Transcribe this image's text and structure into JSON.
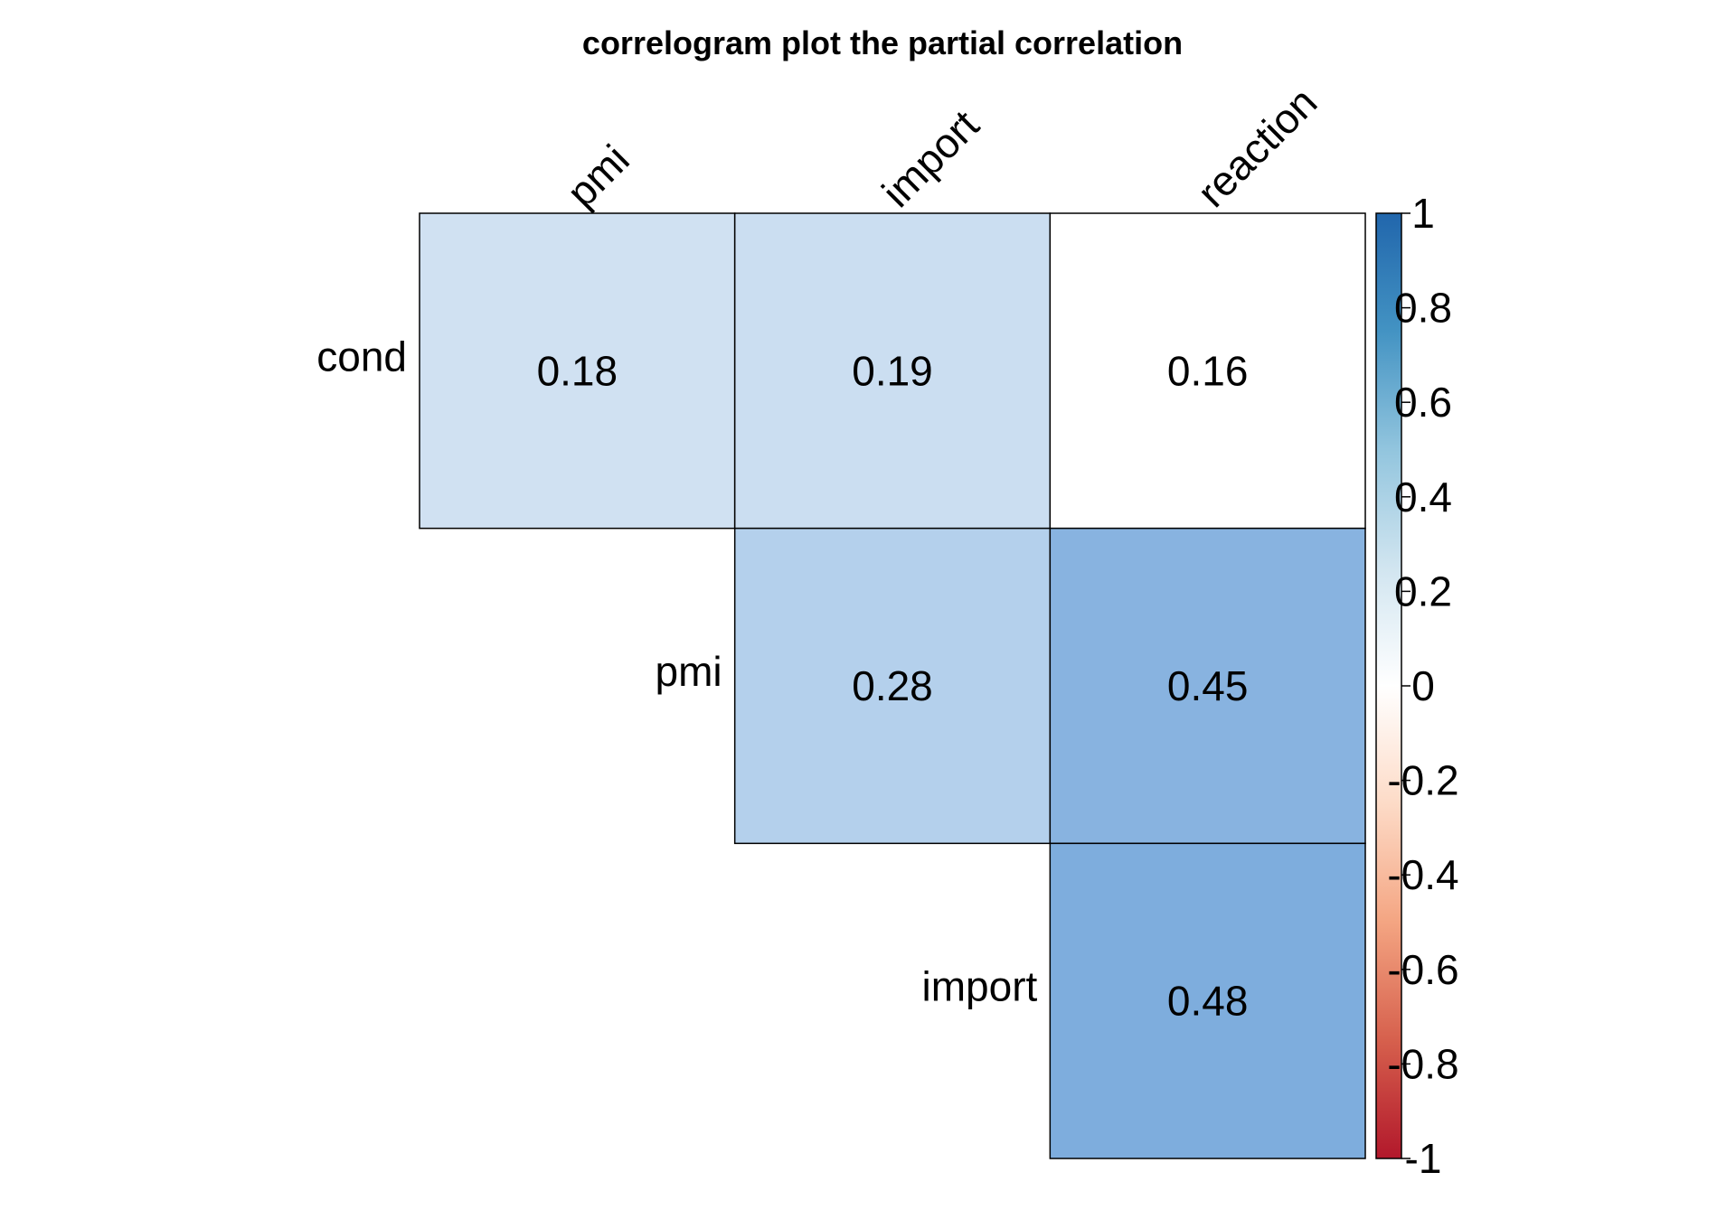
{
  "chart_data": {
    "type": "heatmap",
    "title": "correlogram plot the partial correlation",
    "col_labels": [
      "pmi",
      "import",
      "reaction"
    ],
    "row_labels": [
      "cond",
      "pmi",
      "import"
    ],
    "matrix": [
      [
        0.18,
        0.19,
        0.16
      ],
      [
        null,
        0.28,
        0.45
      ],
      [
        null,
        null,
        0.48
      ]
    ],
    "matrix_labels": [
      [
        "0.18",
        "0.19",
        "0.16"
      ],
      [
        null,
        "0.28",
        "0.45"
      ],
      [
        null,
        null,
        "0.48"
      ]
    ],
    "cell_colors": [
      [
        "#d0e1f2",
        "#cbdef1",
        "#ffffff"
      ],
      [
        null,
        "#b4d0ec",
        "#88b3e0"
      ],
      [
        null,
        null,
        "#7eaddd"
      ]
    ],
    "colorbar": {
      "range": [
        -1,
        1
      ],
      "ticks": [
        "1",
        "0.8",
        "0.6",
        "0.4",
        "0.2",
        "0",
        "-0.2",
        "-0.4",
        "-0.6",
        "-0.8",
        "-1"
      ],
      "colors": [
        "#b2182b",
        "#d6604d",
        "#f4a582",
        "#fddbc7",
        "#ffffff",
        "#d1e5f0",
        "#92c5de",
        "#4393c3",
        "#2166ac"
      ]
    }
  }
}
